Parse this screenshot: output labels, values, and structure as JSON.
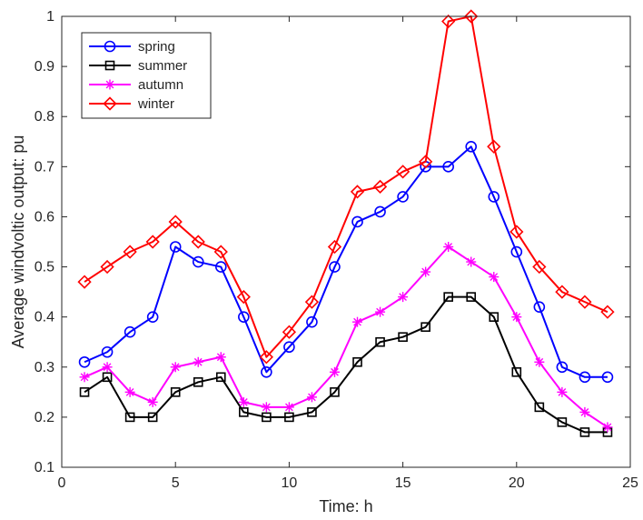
{
  "chart_data": {
    "type": "line",
    "title": "",
    "xlabel": "Time: h",
    "ylabel": "Average windvoltic output: pu",
    "xlim": [
      0,
      25
    ],
    "ylim": [
      0.1,
      1
    ],
    "xticks": [
      0,
      5,
      10,
      15,
      20,
      25
    ],
    "yticks": [
      0.1,
      0.2,
      0.3,
      0.4,
      0.5,
      0.6,
      0.7,
      0.8,
      0.9,
      1
    ],
    "grid": false,
    "legend_position": "top-left",
    "x": [
      1,
      2,
      3,
      4,
      5,
      6,
      7,
      8,
      9,
      10,
      11,
      12,
      13,
      14,
      15,
      16,
      17,
      18,
      19,
      20,
      21,
      22,
      23,
      24
    ],
    "series": [
      {
        "name": "spring",
        "color": "#0000ff",
        "marker": "circle",
        "values": [
          0.31,
          0.33,
          0.37,
          0.4,
          0.54,
          0.51,
          0.5,
          0.4,
          0.29,
          0.34,
          0.39,
          0.5,
          0.59,
          0.61,
          0.64,
          0.7,
          0.7,
          0.74,
          0.64,
          0.53,
          0.42,
          0.3,
          0.28,
          0.28
        ]
      },
      {
        "name": "summer",
        "color": "#000000",
        "marker": "square",
        "values": [
          0.25,
          0.28,
          0.2,
          0.2,
          0.25,
          0.27,
          0.28,
          0.21,
          0.2,
          0.2,
          0.21,
          0.25,
          0.31,
          0.35,
          0.36,
          0.38,
          0.44,
          0.44,
          0.4,
          0.29,
          0.22,
          0.19,
          0.17,
          0.17
        ]
      },
      {
        "name": "autumn",
        "color": "#ff00ff",
        "marker": "asterisk",
        "values": [
          0.28,
          0.3,
          0.25,
          0.23,
          0.3,
          0.31,
          0.32,
          0.23,
          0.22,
          0.22,
          0.24,
          0.29,
          0.39,
          0.41,
          0.44,
          0.49,
          0.54,
          0.51,
          0.48,
          0.4,
          0.31,
          0.25,
          0.21,
          0.18
        ]
      },
      {
        "name": "winter",
        "color": "#ff0000",
        "marker": "diamond",
        "values": [
          0.47,
          0.5,
          0.53,
          0.55,
          0.59,
          0.55,
          0.53,
          0.44,
          0.32,
          0.37,
          0.43,
          0.54,
          0.65,
          0.66,
          0.69,
          0.71,
          0.99,
          1.0,
          0.74,
          0.57,
          0.5,
          0.45,
          0.43,
          0.41
        ]
      }
    ]
  }
}
